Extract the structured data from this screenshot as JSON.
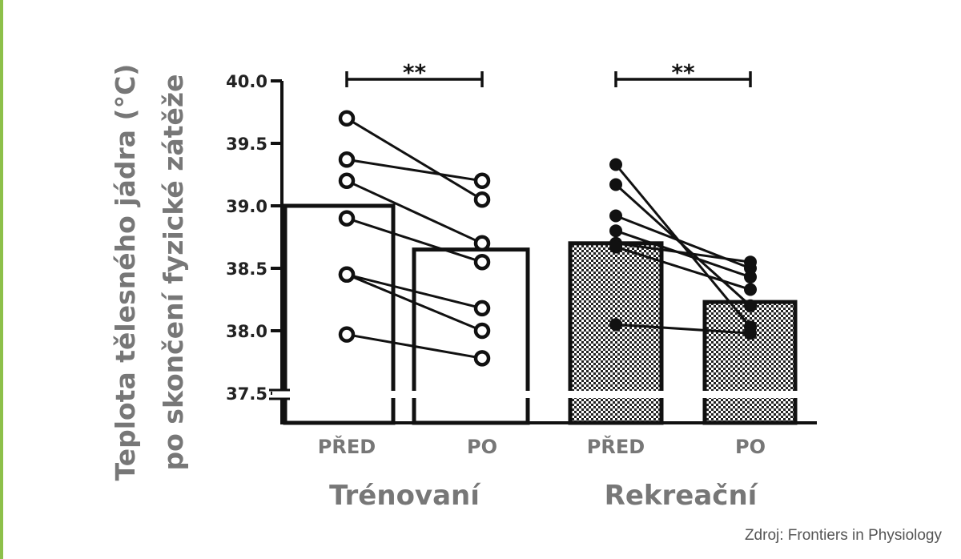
{
  "chart_data": {
    "type": "bar",
    "ylabel": [
      "Teplota tělesného jádra (°C)",
      "po skončení fyzické zátěže"
    ],
    "ylim": [
      37.5,
      40.0
    ],
    "yticks": [
      "37.5",
      "38.0",
      "38.5",
      "39.0",
      "39.5",
      "40.0"
    ],
    "axis_break": true,
    "groups": [
      {
        "name": "Trénovaní",
        "fill": "white",
        "categories": [
          "PŘED",
          "PO"
        ],
        "values": [
          39.0,
          38.65
        ],
        "significance": "**",
        "pairs": [
          [
            39.7,
            39.05
          ],
          [
            39.37,
            39.2
          ],
          [
            39.2,
            38.7
          ],
          [
            38.9,
            38.55
          ],
          [
            38.45,
            38.18
          ],
          [
            38.45,
            38.0
          ],
          [
            37.97,
            37.78
          ]
        ],
        "marker": "open"
      },
      {
        "name": "Rekreační",
        "fill": "checkered",
        "categories": [
          "PŘED",
          "PO"
        ],
        "values": [
          38.7,
          38.23
        ],
        "significance": "**",
        "pairs": [
          [
            39.33,
            38.03
          ],
          [
            39.17,
            38.2
          ],
          [
            38.92,
            38.5
          ],
          [
            38.8,
            38.43
          ],
          [
            38.7,
            38.55
          ],
          [
            38.67,
            38.33
          ],
          [
            38.05,
            37.98
          ]
        ],
        "marker": "filled"
      }
    ]
  },
  "source": "Zdroj: Frontiers in Physiology",
  "colors": {
    "accent": "#8dc04a",
    "label": "#777777"
  }
}
